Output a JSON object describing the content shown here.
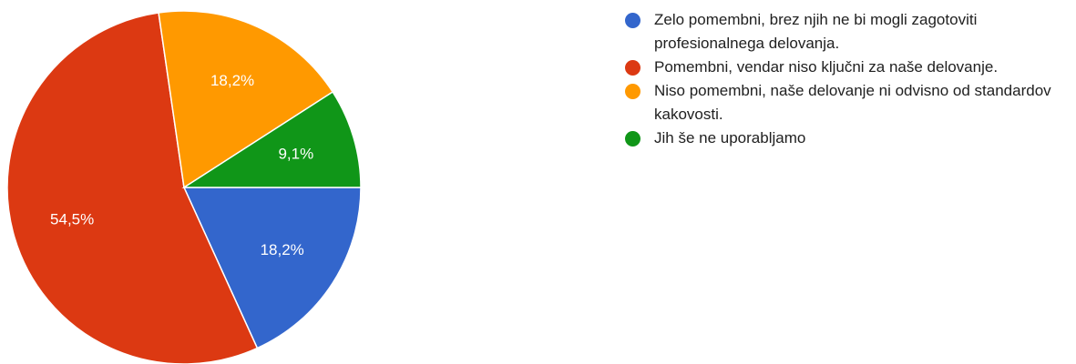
{
  "chart_data": {
    "type": "pie",
    "categories": [
      "Zelo pomembni, brez njih ne bi mogli zagotoviti profesionalnega delovanja.",
      "Pomembni, vendar niso ključni za naše delovanje.",
      "Niso pomembni, naše delovanje ni odvisno od standardov kakovosti.",
      "Jih še ne uporabljamo"
    ],
    "values": [
      18.2,
      54.5,
      18.2,
      9.1
    ],
    "value_labels": [
      "18,2%",
      "54,5%",
      "18,2%",
      "9,1%"
    ],
    "colors": [
      "#3366cc",
      "#dc3912",
      "#ff9900",
      "#109618"
    ],
    "legend": "right"
  }
}
